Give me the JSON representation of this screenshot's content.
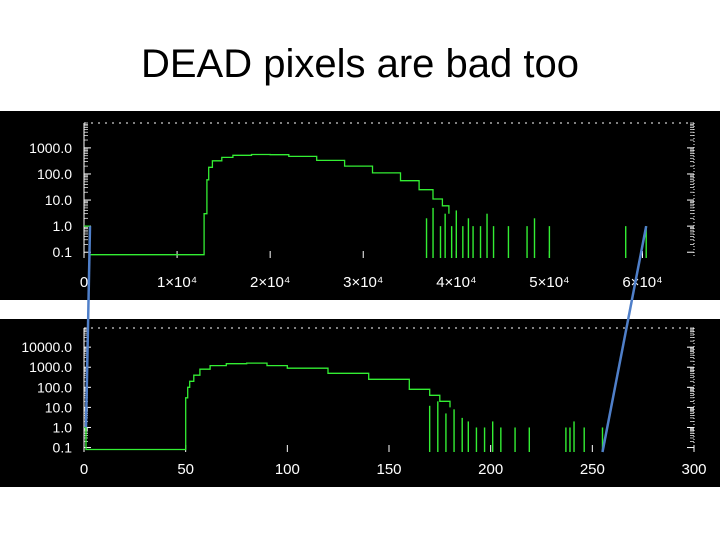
{
  "slide": {
    "title": "DEAD pixels are bad too"
  },
  "colors": {
    "plot_background": "#000000",
    "axis_and_text": "#ffffff",
    "histogram_line": "#33ee33",
    "connector_line": "#4f7fc9",
    "slide_background": "#ffffff"
  },
  "chart_data": [
    {
      "type": "line",
      "title": "",
      "xlabel": "",
      "ylabel": "",
      "y_scale": "log",
      "xlim": [
        0,
        65536
      ],
      "ylim": [
        0.06,
        9000
      ],
      "grid": false,
      "x_tick_values": [
        0,
        10000,
        20000,
        30000,
        40000,
        50000,
        60000
      ],
      "x_tick_labels": [
        "0",
        "1×10⁴",
        "2×10⁴",
        "3×10⁴",
        "4×10⁴",
        "5×10⁴",
        "6×10⁴"
      ],
      "y_tick_values": [
        0.1,
        1,
        10,
        100,
        1000
      ],
      "y_tick_labels": [
        "0.1",
        "1.0",
        "10.0",
        "100.0",
        "1000.0"
      ],
      "series": [
        {
          "x": [
            0,
            600,
            12500,
            12900,
            13200,
            13400,
            13800,
            14800,
            16000,
            18000,
            20000,
            22000,
            25000,
            28000,
            31000,
            34000,
            36000,
            37500,
            38500,
            39200
          ],
          "y": [
            1,
            0.08,
            0.08,
            3,
            60,
            180,
            320,
            430,
            520,
            560,
            550,
            470,
            330,
            200,
            110,
            55,
            25,
            11,
            6,
            3
          ]
        }
      ],
      "spikes": [
        {
          "x": 36800,
          "y": 2
        },
        {
          "x": 37500,
          "y": 5
        },
        {
          "x": 38300,
          "y": 1
        },
        {
          "x": 38800,
          "y": 3
        },
        {
          "x": 39500,
          "y": 1
        },
        {
          "x": 40000,
          "y": 4
        },
        {
          "x": 40700,
          "y": 1
        },
        {
          "x": 41300,
          "y": 2
        },
        {
          "x": 41800,
          "y": 1
        },
        {
          "x": 42600,
          "y": 1
        },
        {
          "x": 43300,
          "y": 3
        },
        {
          "x": 44000,
          "y": 1
        },
        {
          "x": 45600,
          "y": 1
        },
        {
          "x": 47600,
          "y": 1
        },
        {
          "x": 48400,
          "y": 2
        },
        {
          "x": 50000,
          "y": 1
        },
        {
          "x": 58200,
          "y": 1
        },
        {
          "x": 60400,
          "y": 1
        }
      ]
    },
    {
      "type": "line",
      "title": "",
      "xlabel": "",
      "ylabel": "",
      "y_scale": "log",
      "xlim": [
        0,
        300
      ],
      "ylim": [
        0.06,
        90000
      ],
      "grid": false,
      "x_tick_values": [
        0,
        50,
        100,
        150,
        200,
        250,
        300
      ],
      "x_tick_labels": [
        "0",
        "50",
        "100",
        "150",
        "200",
        "250",
        "300"
      ],
      "y_tick_values": [
        0.1,
        1,
        10,
        100,
        1000,
        10000
      ],
      "y_tick_labels": [
        "0.1",
        "1.0",
        "10.0",
        "100.0",
        "1000.0",
        "10000.0"
      ],
      "series": [
        {
          "x": [
            0,
            1,
            2,
            49,
            50,
            51,
            52,
            54,
            57,
            62,
            70,
            80,
            90,
            100,
            120,
            140,
            160,
            170,
            175,
            180
          ],
          "y": [
            1,
            0.08,
            0.08,
            0.08,
            30,
            100,
            200,
            400,
            800,
            1200,
            1500,
            1600,
            1200,
            900,
            500,
            250,
            80,
            40,
            20,
            10
          ]
        }
      ],
      "spikes": [
        {
          "x": 170,
          "y": 12
        },
        {
          "x": 174,
          "y": 20
        },
        {
          "x": 178,
          "y": 5
        },
        {
          "x": 182,
          "y": 8
        },
        {
          "x": 186,
          "y": 3
        },
        {
          "x": 189,
          "y": 2
        },
        {
          "x": 193,
          "y": 1
        },
        {
          "x": 197,
          "y": 1
        },
        {
          "x": 201,
          "y": 2
        },
        {
          "x": 205,
          "y": 1
        },
        {
          "x": 212,
          "y": 1
        },
        {
          "x": 219,
          "y": 1
        },
        {
          "x": 237,
          "y": 1
        },
        {
          "x": 239,
          "y": 1
        },
        {
          "x": 241,
          "y": 2
        },
        {
          "x": 246,
          "y": 1
        },
        {
          "x": 255,
          "y": 1
        }
      ]
    }
  ]
}
